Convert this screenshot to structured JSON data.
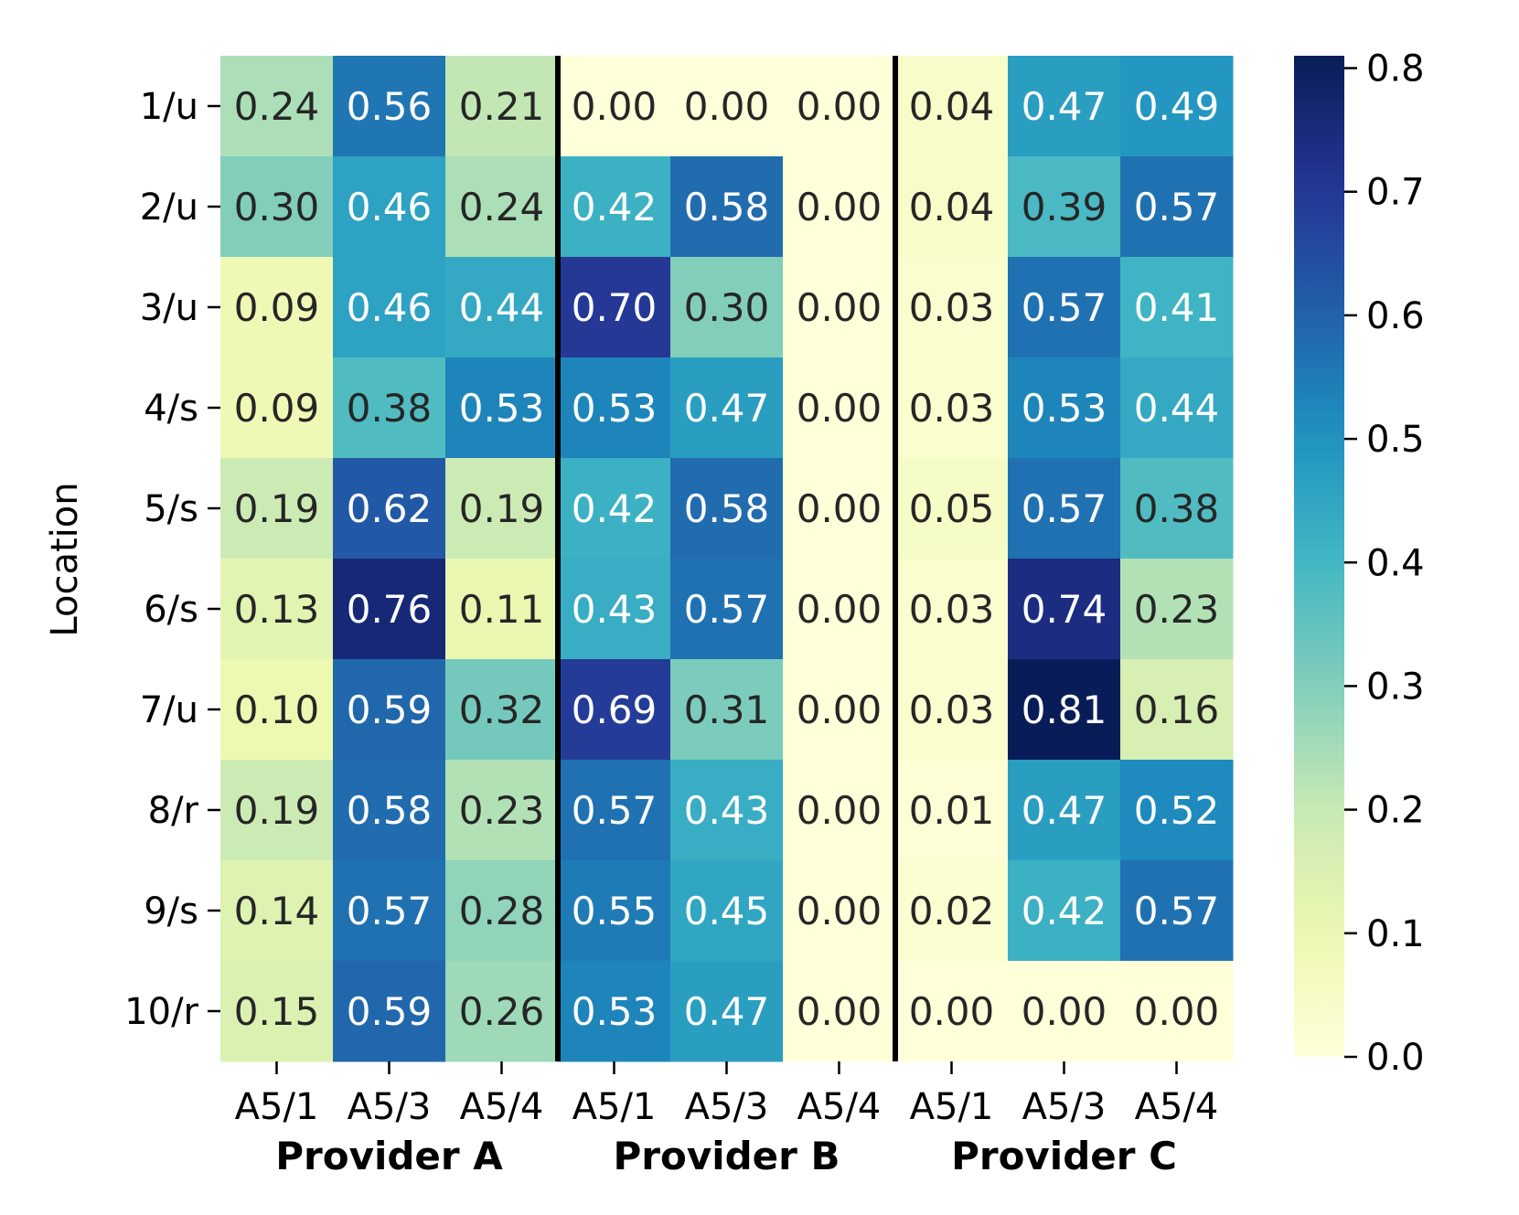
{
  "chart_data": {
    "type": "heatmap",
    "ylabel": "Location",
    "rows": [
      "1/u",
      "2/u",
      "3/u",
      "4/s",
      "5/s",
      "6/s",
      "7/u",
      "8/r",
      "9/s",
      "10/r"
    ],
    "columns": [
      "A5/1",
      "A5/3",
      "A5/4",
      "A5/1",
      "A5/3",
      "A5/4",
      "A5/1",
      "A5/3",
      "A5/4"
    ],
    "groups": [
      {
        "label": "Provider A",
        "columns": [
          0,
          1,
          2
        ]
      },
      {
        "label": "Provider B",
        "columns": [
          3,
          4,
          5
        ]
      },
      {
        "label": "Provider C",
        "columns": [
          6,
          7,
          8
        ]
      }
    ],
    "values": [
      [
        0.24,
        0.56,
        0.21,
        0.0,
        0.0,
        0.0,
        0.04,
        0.47,
        0.49
      ],
      [
        0.3,
        0.46,
        0.24,
        0.42,
        0.58,
        0.0,
        0.04,
        0.39,
        0.57
      ],
      [
        0.09,
        0.46,
        0.44,
        0.7,
        0.3,
        0.0,
        0.03,
        0.57,
        0.41
      ],
      [
        0.09,
        0.38,
        0.53,
        0.53,
        0.47,
        0.0,
        0.03,
        0.53,
        0.44
      ],
      [
        0.19,
        0.62,
        0.19,
        0.42,
        0.58,
        0.0,
        0.05,
        0.57,
        0.38
      ],
      [
        0.13,
        0.76,
        0.11,
        0.43,
        0.57,
        0.0,
        0.03,
        0.74,
        0.23
      ],
      [
        0.1,
        0.59,
        0.32,
        0.69,
        0.31,
        0.0,
        0.03,
        0.81,
        0.16
      ],
      [
        0.19,
        0.58,
        0.23,
        0.57,
        0.43,
        0.0,
        0.01,
        0.47,
        0.52
      ],
      [
        0.14,
        0.57,
        0.28,
        0.55,
        0.45,
        0.0,
        0.02,
        0.42,
        0.57
      ],
      [
        0.15,
        0.59,
        0.26,
        0.53,
        0.47,
        0.0,
        0.0,
        0.0,
        0.0
      ]
    ],
    "value_format": "0.00",
    "colormap": "YlGnBu",
    "colorbar": {
      "range": [
        0.0,
        0.81
      ],
      "ticks": [
        "0.0",
        "0.1",
        "0.2",
        "0.3",
        "0.4",
        "0.5",
        "0.6",
        "0.7",
        "0.8"
      ],
      "tick_values": [
        0.0,
        0.1,
        0.2,
        0.3,
        0.4,
        0.5,
        0.6,
        0.7,
        0.8
      ]
    },
    "separators_after_column": [
      2,
      5
    ]
  }
}
